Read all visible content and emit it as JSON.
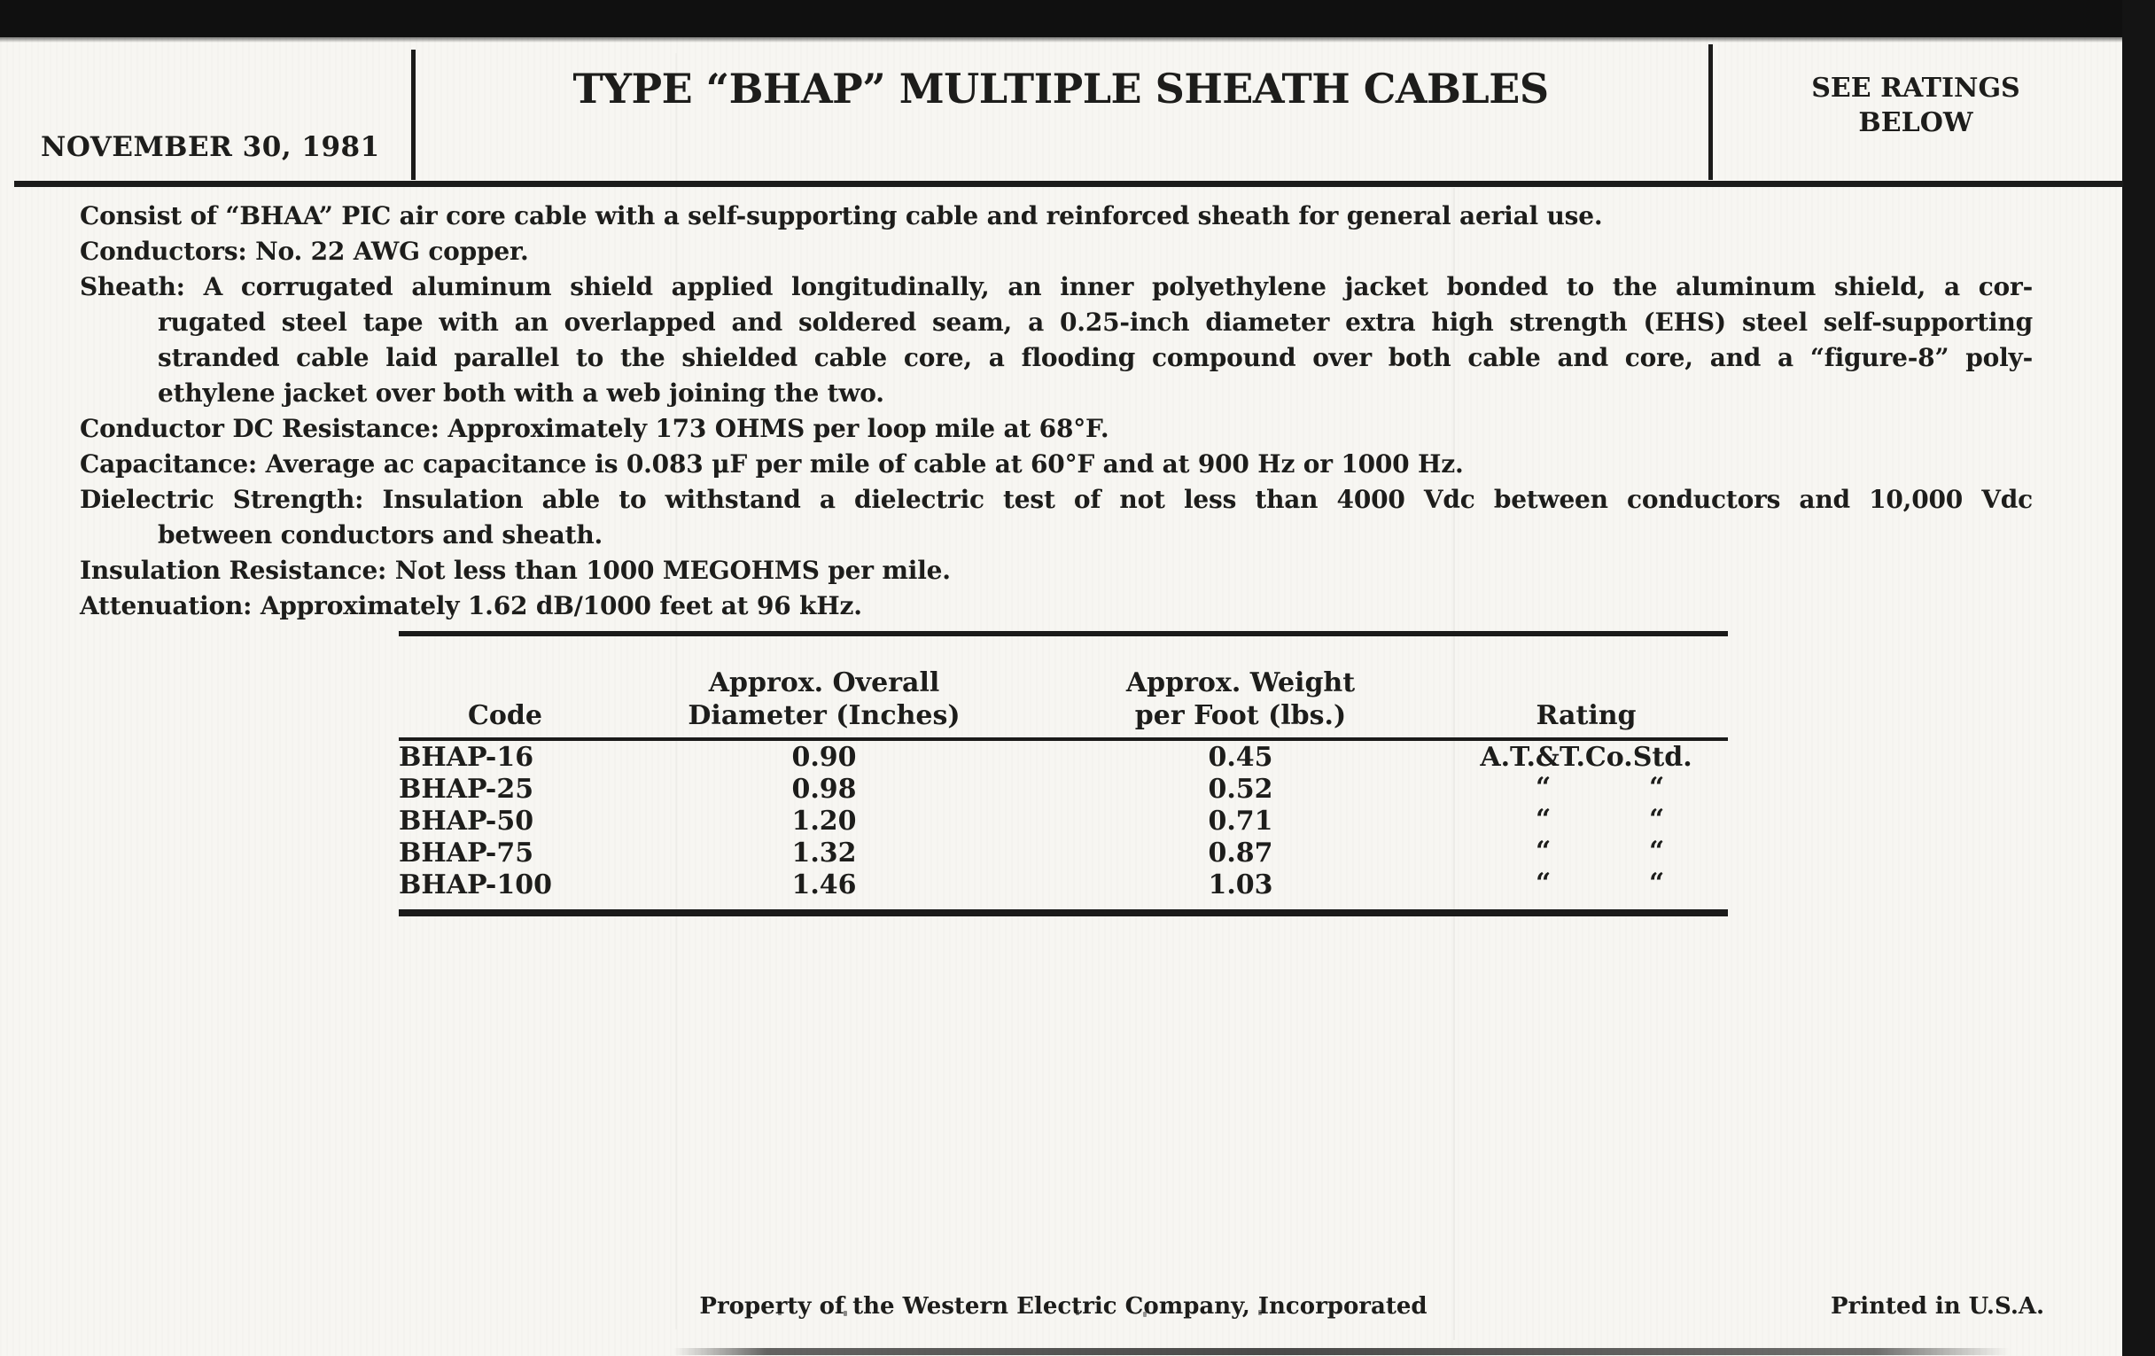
{
  "header": {
    "date": "NOVEMBER 30, 1981",
    "title": "TYPE “BHAP” MULTIPLE SHEATH CABLES",
    "ratings_note_line1": "SEE RATINGS",
    "ratings_note_line2": "BELOW"
  },
  "body": {
    "entries": [
      {
        "lines": [
          "Consist of “BHAA” PIC air core cable with a self-supporting cable and reinforced sheath for general aerial use."
        ]
      },
      {
        "lines": [
          "Conductors: No. 22 AWG copper."
        ]
      },
      {
        "lines": [
          "Sheath: A corrugated aluminum shield applied longitudinally, an inner polyethylene jacket bonded to the aluminum shield, a cor-",
          "rugated steel tape with an overlapped and soldered seam, a 0.25-inch diameter extra high strength (EHS) steel self-supporting",
          "stranded cable laid parallel to the shielded cable core, a flooding compound over both cable and core, and a “figure-8” poly-",
          "ethylene jacket over both with a web joining the two."
        ]
      },
      {
        "lines": [
          "Conductor DC Resistance: Approximately 173 OHMS per loop mile at 68°F."
        ]
      },
      {
        "lines": [
          "Capacitance: Average ac capacitance is 0.083 μF per mile of cable at 60°F and at 900 Hz or 1000 Hz."
        ]
      },
      {
        "lines": [
          "Dielectric Strength: Insulation able to withstand a dielectric test of not less than 4000 Vdc between conductors and 10,000 Vdc",
          "between conductors and sheath."
        ]
      },
      {
        "lines": [
          "Insulation Resistance: Not less than 1000 MEGOHMS per mile."
        ]
      },
      {
        "lines": [
          "Attenuation: Approximately 1.62 dB/1000 feet at 96 kHz."
        ]
      }
    ]
  },
  "table": {
    "headers": [
      {
        "lines": [
          "Code"
        ]
      },
      {
        "lines": [
          "Approx. Overall",
          "Diameter (Inches)"
        ]
      },
      {
        "lines": [
          "Approx. Weight",
          "per Foot (lbs.)"
        ]
      },
      {
        "lines": [
          "Rating"
        ]
      }
    ],
    "rows": [
      {
        "code": "BHAP-16",
        "diameter": "0.90",
        "weight": "0.45",
        "rating": "A.T.&T.Co.Std.",
        "rating_is_ditto": false
      },
      {
        "code": "BHAP-25",
        "diameter": "0.98",
        "weight": "0.52",
        "rating": "“ “",
        "rating_is_ditto": true
      },
      {
        "code": "BHAP-50",
        "diameter": "1.20",
        "weight": "0.71",
        "rating": "“ “",
        "rating_is_ditto": true
      },
      {
        "code": "BHAP-75",
        "diameter": "1.32",
        "weight": "0.87",
        "rating": "“ “",
        "rating_is_ditto": true
      },
      {
        "code": "BHAP-100",
        "diameter": "1.46",
        "weight": "1.03",
        "rating": "“ “",
        "rating_is_ditto": true
      }
    ],
    "ditto_mark": "“"
  },
  "footer": {
    "property_note": "Property of the Western Electric Company, Incorporated",
    "printed_note": "Printed in U.S.A."
  },
  "colors": {
    "ink": "#1d1d1b",
    "paper": "#f7f6f2",
    "scan_band": "#101010"
  }
}
